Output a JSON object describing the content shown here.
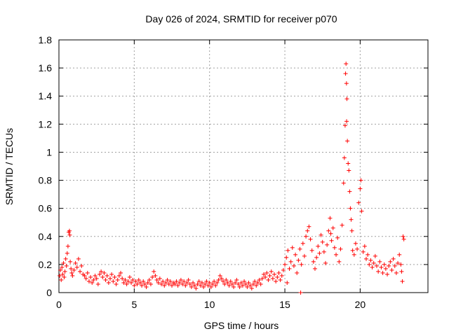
{
  "chart_data": {
    "type": "scatter",
    "title": "Day 026 of 2024, SRMTID for receiver p070",
    "xlabel": "GPS time / hours",
    "ylabel": "SRMTID / TECUs",
    "xlim": [
      0,
      24.5
    ],
    "ylim": [
      0,
      1.8
    ],
    "xticks": [
      0,
      5,
      10,
      15,
      20
    ],
    "xtick_labels": [
      "0",
      "5",
      "10",
      "15",
      "20"
    ],
    "yticks": [
      0,
      0.2,
      0.4,
      0.6,
      0.8,
      1.0,
      1.2,
      1.4,
      1.6,
      1.8
    ],
    "ytick_labels": [
      "0",
      "0.2",
      "0.4",
      "0.6",
      "0.8",
      "1",
      "1.2",
      "1.4",
      "1.6",
      "1.8"
    ],
    "grid": true,
    "marker": "+",
    "color": "#ff0000",
    "series": [
      {
        "name": "SRMTID",
        "points": [
          [
            0.05,
            0.12
          ],
          [
            0.1,
            0.16
          ],
          [
            0.15,
            0.09
          ],
          [
            0.2,
            0.18
          ],
          [
            0.25,
            0.13
          ],
          [
            0.3,
            0.21
          ],
          [
            0.35,
            0.11
          ],
          [
            0.4,
            0.15
          ],
          [
            0.45,
            0.24
          ],
          [
            0.5,
            0.19
          ],
          [
            0.55,
            0.28
          ],
          [
            0.6,
            0.33
          ],
          [
            0.65,
            0.43
          ],
          [
            0.7,
            0.44
          ],
          [
            0.72,
            0.41
          ],
          [
            0.75,
            0.22
          ],
          [
            0.8,
            0.17
          ],
          [
            0.85,
            0.14
          ],
          [
            0.9,
            0.12
          ],
          [
            1.0,
            0.16
          ],
          [
            1.1,
            0.21
          ],
          [
            1.2,
            0.18
          ],
          [
            1.3,
            0.24
          ],
          [
            1.4,
            0.15
          ],
          [
            1.5,
            0.19
          ],
          [
            1.6,
            0.13
          ],
          [
            1.7,
            0.12
          ],
          [
            1.8,
            0.1
          ],
          [
            1.9,
            0.14
          ],
          [
            2.0,
            0.08
          ],
          [
            2.1,
            0.11
          ],
          [
            2.2,
            0.07
          ],
          [
            2.3,
            0.09
          ],
          [
            2.4,
            0.12
          ],
          [
            2.5,
            0.1
          ],
          [
            2.6,
            0.06
          ],
          [
            2.7,
            0.13
          ],
          [
            2.8,
            0.15
          ],
          [
            2.9,
            0.11
          ],
          [
            3.0,
            0.14
          ],
          [
            3.1,
            0.09
          ],
          [
            3.2,
            0.12
          ],
          [
            3.3,
            0.07
          ],
          [
            3.4,
            0.1
          ],
          [
            3.5,
            0.13
          ],
          [
            3.6,
            0.08
          ],
          [
            3.7,
            0.11
          ],
          [
            3.8,
            0.06
          ],
          [
            3.9,
            0.09
          ],
          [
            4.0,
            0.12
          ],
          [
            4.1,
            0.14
          ],
          [
            4.2,
            0.1
          ],
          [
            4.3,
            0.07
          ],
          [
            4.4,
            0.09
          ],
          [
            4.5,
            0.06
          ],
          [
            4.6,
            0.08
          ],
          [
            4.7,
            0.11
          ],
          [
            4.8,
            0.07
          ],
          [
            4.9,
            0.09
          ],
          [
            5.0,
            0.05
          ],
          [
            5.1,
            0.08
          ],
          [
            5.2,
            0.06
          ],
          [
            5.3,
            0.09
          ],
          [
            5.4,
            0.07
          ],
          [
            5.5,
            0.05
          ],
          [
            5.6,
            0.08
          ],
          [
            5.7,
            0.06
          ],
          [
            5.8,
            0.04
          ],
          [
            5.9,
            0.07
          ],
          [
            6.0,
            0.09
          ],
          [
            6.1,
            0.06
          ],
          [
            6.2,
            0.11
          ],
          [
            6.3,
            0.15
          ],
          [
            6.4,
            0.12
          ],
          [
            6.5,
            0.09
          ],
          [
            6.6,
            0.07
          ],
          [
            6.7,
            0.1
          ],
          [
            6.8,
            0.06
          ],
          [
            6.9,
            0.08
          ],
          [
            7.0,
            0.05
          ],
          [
            7.1,
            0.07
          ],
          [
            7.2,
            0.09
          ],
          [
            7.3,
            0.06
          ],
          [
            7.4,
            0.08
          ],
          [
            7.5,
            0.05
          ],
          [
            7.6,
            0.07
          ],
          [
            7.7,
            0.06
          ],
          [
            7.8,
            0.08
          ],
          [
            7.9,
            0.05
          ],
          [
            8.0,
            0.07
          ],
          [
            8.1,
            0.09
          ],
          [
            8.2,
            0.06
          ],
          [
            8.3,
            0.08
          ],
          [
            8.4,
            0.05
          ],
          [
            8.5,
            0.07
          ],
          [
            8.6,
            0.09
          ],
          [
            8.7,
            0.06
          ],
          [
            8.8,
            0.04
          ],
          [
            8.9,
            0.07
          ],
          [
            9.0,
            0.05
          ],
          [
            9.1,
            0.03
          ],
          [
            9.2,
            0.06
          ],
          [
            9.3,
            0.08
          ],
          [
            9.4,
            0.05
          ],
          [
            9.5,
            0.07
          ],
          [
            9.6,
            0.04
          ],
          [
            9.7,
            0.06
          ],
          [
            9.8,
            0.08
          ],
          [
            9.9,
            0.05
          ],
          [
            10.0,
            0.07
          ],
          [
            10.1,
            0.04
          ],
          [
            10.2,
            0.06
          ],
          [
            10.3,
            0.08
          ],
          [
            10.4,
            0.05
          ],
          [
            10.5,
            0.07
          ],
          [
            10.6,
            0.09
          ],
          [
            10.7,
            0.12
          ],
          [
            10.8,
            0.1
          ],
          [
            10.9,
            0.08
          ],
          [
            11.0,
            0.06
          ],
          [
            11.1,
            0.09
          ],
          [
            11.2,
            0.07
          ],
          [
            11.3,
            0.05
          ],
          [
            11.4,
            0.08
          ],
          [
            11.5,
            0.06
          ],
          [
            11.6,
            0.04
          ],
          [
            11.7,
            0.07
          ],
          [
            11.8,
            0.09
          ],
          [
            11.9,
            0.06
          ],
          [
            12.0,
            0.04
          ],
          [
            12.1,
            0.07
          ],
          [
            12.2,
            0.05
          ],
          [
            12.3,
            0.08
          ],
          [
            12.4,
            0.06
          ],
          [
            12.5,
            0.04
          ],
          [
            12.6,
            0.07
          ],
          [
            12.7,
            0.05
          ],
          [
            12.8,
            0.03
          ],
          [
            12.9,
            0.06
          ],
          [
            13.0,
            0.08
          ],
          [
            13.1,
            0.05
          ],
          [
            13.2,
            0.07
          ],
          [
            13.3,
            0.09
          ],
          [
            13.4,
            0.06
          ],
          [
            13.5,
            0.1
          ],
          [
            13.6,
            0.13
          ],
          [
            13.7,
            0.11
          ],
          [
            13.8,
            0.14
          ],
          [
            13.9,
            0.09
          ],
          [
            14.0,
            0.12
          ],
          [
            14.1,
            0.15
          ],
          [
            14.2,
            0.1
          ],
          [
            14.3,
            0.13
          ],
          [
            14.4,
            0.08
          ],
          [
            14.5,
            0.11
          ],
          [
            14.6,
            0.14
          ],
          [
            14.7,
            0.09
          ],
          [
            14.8,
            0.12
          ],
          [
            14.9,
            0.16
          ],
          [
            15.0,
            0.2
          ],
          [
            15.1,
            0.25
          ],
          [
            15.15,
            0.07
          ],
          [
            15.2,
            0.3
          ],
          [
            15.3,
            0.17
          ],
          [
            15.4,
            0.22
          ],
          [
            15.5,
            0.32
          ],
          [
            15.6,
            0.19
          ],
          [
            15.7,
            0.27
          ],
          [
            15.8,
            0.14
          ],
          [
            15.9,
            0.23
          ],
          [
            16.0,
            0.31
          ],
          [
            16.05,
            0.0
          ],
          [
            16.1,
            0.2
          ],
          [
            16.2,
            0.35
          ],
          [
            16.3,
            0.26
          ],
          [
            16.4,
            0.4
          ],
          [
            16.5,
            0.44
          ],
          [
            16.6,
            0.47
          ],
          [
            16.7,
            0.38
          ],
          [
            16.8,
            0.3
          ],
          [
            16.9,
            0.22
          ],
          [
            17.0,
            0.17
          ],
          [
            17.1,
            0.25
          ],
          [
            17.2,
            0.33
          ],
          [
            17.3,
            0.28
          ],
          [
            17.4,
            0.41
          ],
          [
            17.5,
            0.36
          ],
          [
            17.6,
            0.29
          ],
          [
            17.7,
            0.21
          ],
          [
            17.8,
            0.34
          ],
          [
            17.9,
            0.44
          ],
          [
            18.0,
            0.53
          ],
          [
            18.05,
            0.42
          ],
          [
            18.1,
            0.37
          ],
          [
            18.2,
            0.46
          ],
          [
            18.3,
            0.32
          ],
          [
            18.4,
            0.27
          ],
          [
            18.5,
            0.39
          ],
          [
            18.6,
            0.22
          ],
          [
            18.7,
            0.31
          ],
          [
            18.8,
            0.48
          ],
          [
            18.9,
            0.78
          ],
          [
            18.95,
            0.96
          ],
          [
            19.0,
            1.19
          ],
          [
            19.03,
            1.56
          ],
          [
            19.06,
            1.63
          ],
          [
            19.09,
            1.49
          ],
          [
            19.1,
            1.22
          ],
          [
            19.12,
            1.38
          ],
          [
            19.15,
            1.08
          ],
          [
            19.2,
            0.92
          ],
          [
            19.25,
            0.87
          ],
          [
            19.3,
            0.72
          ],
          [
            19.35,
            0.6
          ],
          [
            19.4,
            0.52
          ],
          [
            19.45,
            0.44
          ],
          [
            19.5,
            0.3
          ],
          [
            19.6,
            0.27
          ],
          [
            19.7,
            0.35
          ],
          [
            19.8,
            0.31
          ],
          [
            19.9,
            0.64
          ],
          [
            20.0,
            0.74
          ],
          [
            20.05,
            0.8
          ],
          [
            20.1,
            0.58
          ],
          [
            20.2,
            0.29
          ],
          [
            20.3,
            0.33
          ],
          [
            20.4,
            0.24
          ],
          [
            20.5,
            0.27
          ],
          [
            20.6,
            0.2
          ],
          [
            20.7,
            0.23
          ],
          [
            20.8,
            0.18
          ],
          [
            20.9,
            0.21
          ],
          [
            21.0,
            0.26
          ],
          [
            21.1,
            0.19
          ],
          [
            21.2,
            0.15
          ],
          [
            21.3,
            0.22
          ],
          [
            21.4,
            0.18
          ],
          [
            21.5,
            0.14
          ],
          [
            21.6,
            0.2
          ],
          [
            21.7,
            0.17
          ],
          [
            21.8,
            0.13
          ],
          [
            21.9,
            0.19
          ],
          [
            22.0,
            0.22
          ],
          [
            22.1,
            0.16
          ],
          [
            22.2,
            0.24
          ],
          [
            22.3,
            0.19
          ],
          [
            22.4,
            0.14
          ],
          [
            22.5,
            0.21
          ],
          [
            22.6,
            0.27
          ],
          [
            22.7,
            0.2
          ],
          [
            22.75,
            0.15
          ],
          [
            22.8,
            0.08
          ],
          [
            22.85,
            0.4
          ],
          [
            22.9,
            0.38
          ]
        ]
      }
    ]
  }
}
